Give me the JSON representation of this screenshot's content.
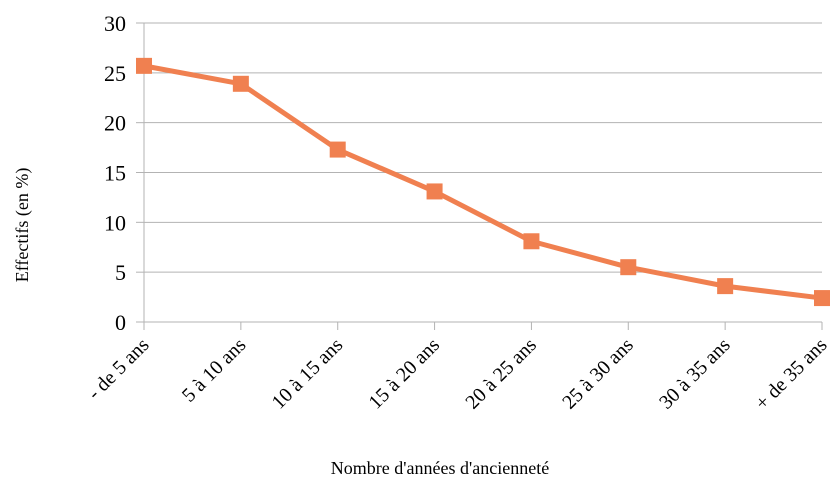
{
  "chart_data": {
    "type": "line",
    "categories": [
      "- de 5 ans",
      "5 à 10 ans",
      "10 à 15 ans",
      "15 à 20 ans",
      "20 à 25 ans",
      "25 à 30 ans",
      "30 à 35 ans",
      "+ de 35 ans"
    ],
    "series": [
      {
        "values": [
          25.7,
          23.9,
          17.3,
          13.1,
          8.1,
          5.5,
          3.6,
          2.4
        ],
        "color": "#f08050",
        "marker": "square"
      }
    ],
    "xlabel": "Nombre d'années d'ancienneté",
    "ylabel": "Effectifs (en %)",
    "ylim": [
      0,
      30
    ],
    "yticks": [
      0,
      5,
      10,
      15,
      20,
      25,
      30
    ],
    "grid": true,
    "legend": "none"
  }
}
